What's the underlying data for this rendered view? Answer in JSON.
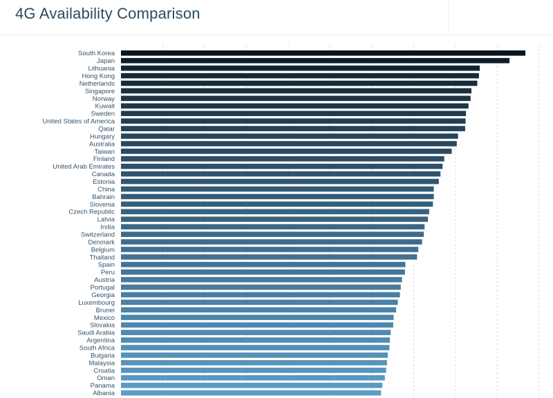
{
  "page": {
    "title": "4G Availability Comparison"
  },
  "chart_data": {
    "type": "bar",
    "orientation": "horizontal",
    "title": "4G Availability Comparison",
    "xlabel": "",
    "ylabel": "",
    "xlim": [
      0,
      100
    ],
    "grid": true,
    "colors": {
      "darkest": "#0a1620",
      "lightest": "#5b9cc8"
    },
    "categories": [
      "South Korea",
      "Japan",
      "Lithuania",
      "Hong Kong",
      "Netherlands",
      "Singapore",
      "Norway",
      "Kuwait",
      "Sweden",
      "United States of America",
      "Qatar",
      "Hungary",
      "Australia",
      "Taiwan",
      "Finland",
      "United Arab Emirates",
      "Canada",
      "Estonia",
      "China",
      "Bahrain",
      "Slovenia",
      "Czech Republic",
      "Latvia",
      "India",
      "Switzerland",
      "Denmark",
      "Belgium",
      "Thailand",
      "Spain",
      "Peru",
      "Austria",
      "Portugal",
      "Georgia",
      "Luxembourg",
      "Brunei",
      "Mexico",
      "Slovakia",
      "Saudi Arabia",
      "Argentina",
      "South Africa",
      "Bulgaria",
      "Malaysia",
      "Croatia",
      "Oman",
      "Panama",
      "Albania"
    ],
    "values": [
      96.7,
      92.9,
      85.8,
      85.6,
      85.2,
      83.8,
      83.6,
      83.1,
      82.5,
      82.4,
      82.3,
      80.6,
      80.3,
      79.1,
      77.3,
      76.9,
      76.4,
      76.0,
      74.8,
      74.8,
      74.6,
      73.7,
      73.4,
      72.6,
      72.4,
      72.0,
      71.1,
      70.8,
      68.0,
      67.9,
      67.2,
      66.9,
      66.7,
      66.2,
      65.8,
      65.2,
      65.1,
      64.5,
      64.3,
      64.2,
      63.8,
      63.6,
      63.4,
      63.1,
      62.5,
      62.2
    ]
  }
}
